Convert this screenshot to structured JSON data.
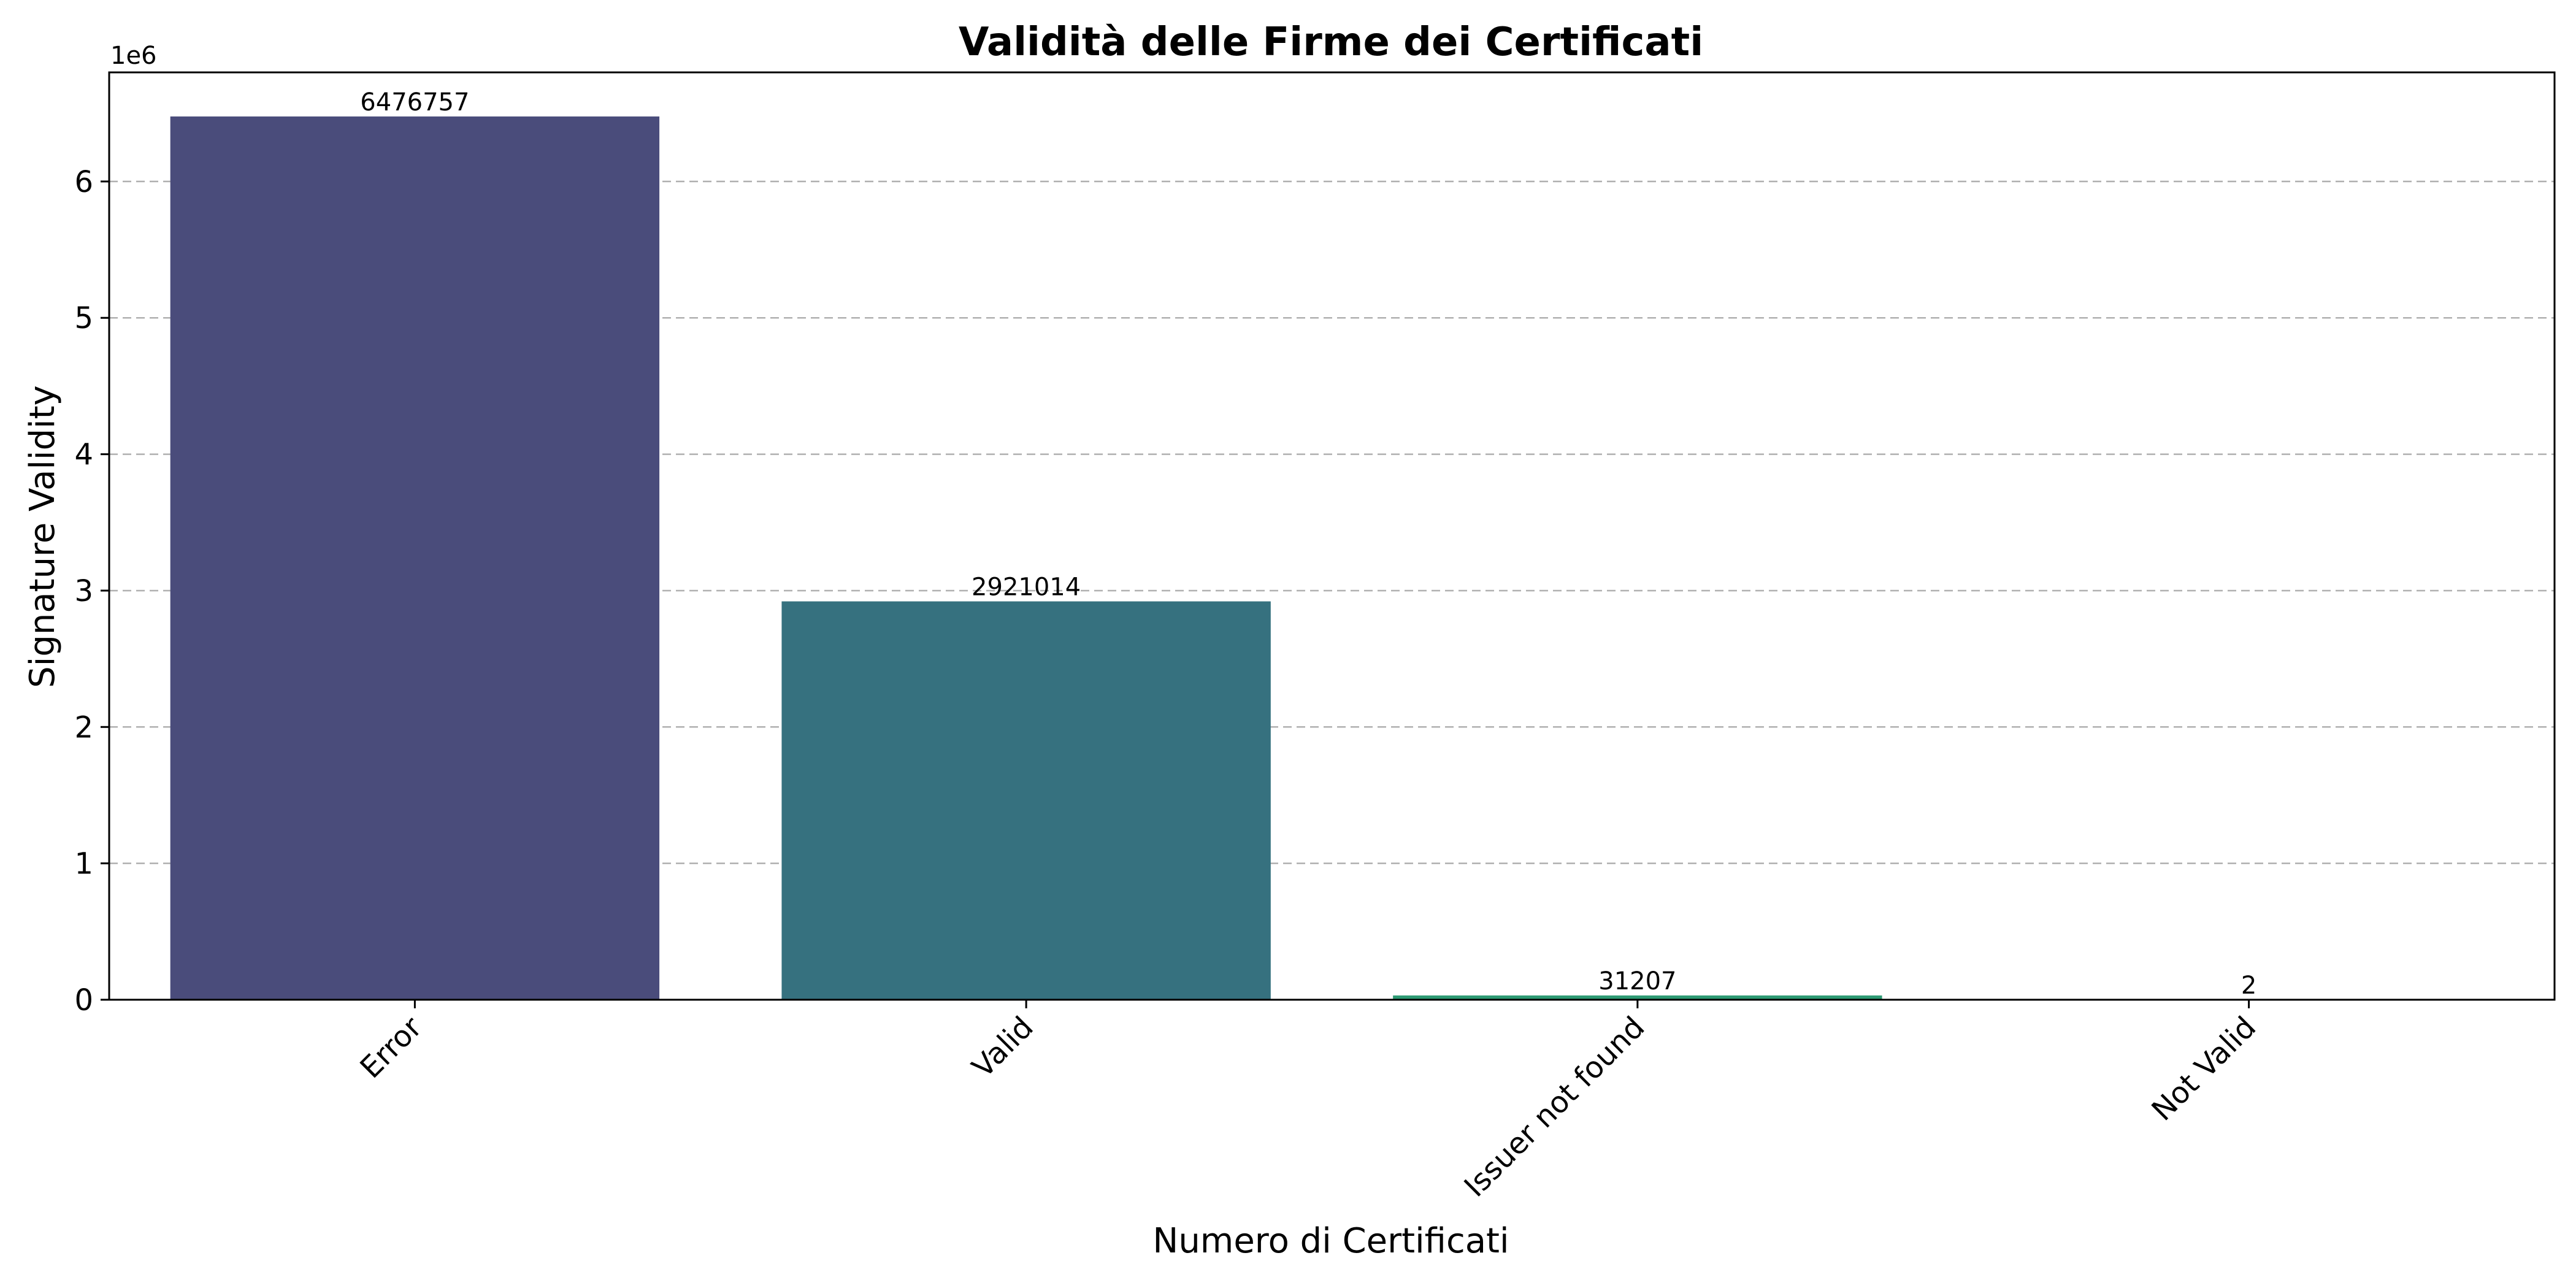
{
  "chart_data": {
    "type": "bar",
    "title": "Validità delle Firme dei Certificati",
    "xlabel": "Numero di Certificati",
    "ylabel": "Signature Validity",
    "y_offset_label": "1e6",
    "categories": [
      "Error",
      "Valid",
      "Issuer not found",
      "Not Valid"
    ],
    "values": [
      6476757,
      2921014,
      31207,
      2
    ],
    "data_labels": [
      "6476757",
      "2921014",
      "31207",
      "2"
    ],
    "ylim": [
      0,
      6800000
    ],
    "yticks": [
      0,
      1000000,
      2000000,
      3000000,
      4000000,
      5000000,
      6000000
    ],
    "ytick_labels": [
      "0",
      "1",
      "2",
      "3",
      "4",
      "5",
      "6"
    ],
    "colors": [
      "#4a4c7b",
      "#36717f",
      "#2d9a73",
      "#4fb766"
    ],
    "grid": "y-dashed",
    "legend": "none"
  }
}
